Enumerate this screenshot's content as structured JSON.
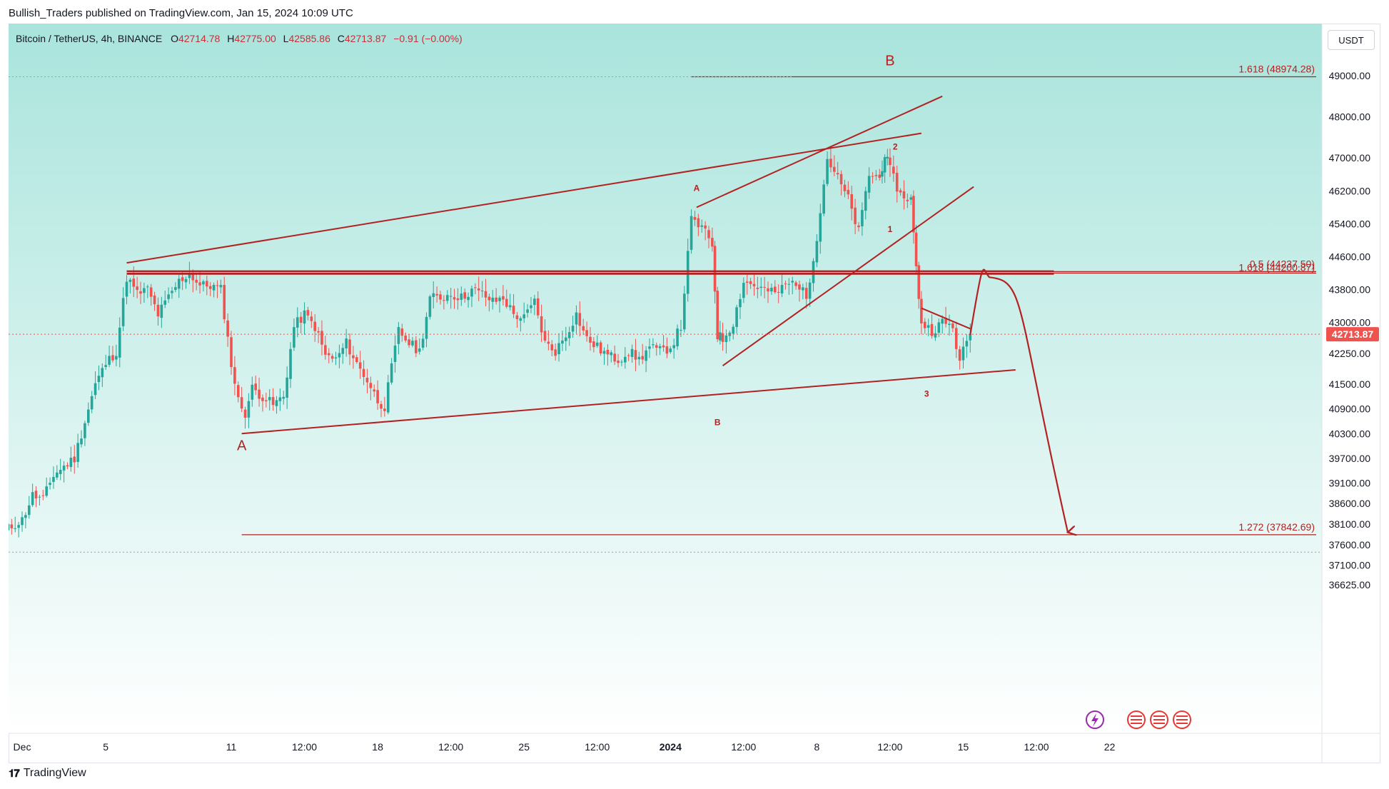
{
  "header": {
    "byline": "Bullish_Traders published on TradingView.com, Jan 15, 2024 10:09 UTC",
    "symbol": "Bitcoin / TetherUS, 4h, BINANCE",
    "ohlc": [
      {
        "k": "O",
        "v": "42714.78"
      },
      {
        "k": "H",
        "v": "42775.00"
      },
      {
        "k": "L",
        "v": "42585.86"
      },
      {
        "k": "C",
        "v": "42713.87"
      }
    ],
    "change": "−0.91 (−0.00%)",
    "currency": "USDT"
  },
  "footer": {
    "brand": "TradingView"
  },
  "colors": {
    "up": "#26a69a",
    "down": "#ef5350",
    "annotation": "#b22222",
    "bg_top": "#a9e4dc",
    "bg_bottom": "#ffffff"
  },
  "chart_data": {
    "type": "candlestick",
    "title": "Bitcoin / TetherUS, 4h, BINANCE",
    "ylim": [
      36400,
      49800
    ],
    "y_ticks": [
      "49000.00",
      "48000.00",
      "47000.00",
      "46200.00",
      "45400.00",
      "44600.00",
      "43800.00",
      "43000.00",
      "42250.00",
      "41500.00",
      "40900.00",
      "40300.00",
      "39700.00",
      "39100.00",
      "38600.00",
      "38100.00",
      "37600.00",
      "37100.00",
      "36625.00"
    ],
    "x_ticks": [
      {
        "label": "Dec",
        "x": "2023-12-01 00:00"
      },
      {
        "label": "5",
        "x": "2023-12-05 00:00"
      },
      {
        "label": "11",
        "x": "2023-12-11 00:00"
      },
      {
        "label": "12:00",
        "x": "2023-12-14 12:00"
      },
      {
        "label": "18",
        "x": "2023-12-18 00:00"
      },
      {
        "label": "12:00",
        "x": "2023-12-21 12:00"
      },
      {
        "label": "25",
        "x": "2023-12-25 00:00"
      },
      {
        "label": "12:00",
        "x": "2023-12-28 12:00"
      },
      {
        "label": "2024",
        "x": "2024-01-01 00:00"
      },
      {
        "label": "12:00",
        "x": "2024-01-04 12:00"
      },
      {
        "label": "8",
        "x": "2024-01-08 00:00"
      },
      {
        "label": "12:00",
        "x": "2024-01-11 12:00"
      },
      {
        "label": "15",
        "x": "2024-01-15 00:00"
      },
      {
        "label": "12:00",
        "x": "2024-01-18 12:00"
      },
      {
        "label": "22",
        "x": "2024-01-22 00:00"
      }
    ],
    "last_price": "42713.87",
    "close_path": [
      [
        "2023-11-30 00:00",
        37900
      ],
      [
        "2023-12-01 00:00",
        38200
      ],
      [
        "2023-12-01 12:00",
        38800
      ],
      [
        "2023-12-02 00:00",
        38700
      ],
      [
        "2023-12-02 12:00",
        39300
      ],
      [
        "2023-12-03 00:00",
        39500
      ],
      [
        "2023-12-03 12:00",
        39700
      ],
      [
        "2023-12-04 00:00",
        40600
      ],
      [
        "2023-12-04 12:00",
        41500
      ],
      [
        "2023-12-05 00:00",
        42000
      ],
      [
        "2023-12-05 12:00",
        42300
      ],
      [
        "2023-12-06 00:00",
        44100
      ],
      [
        "2023-12-06 12:00",
        43700
      ],
      [
        "2023-12-07 00:00",
        43800
      ],
      [
        "2023-12-07 12:00",
        43200
      ],
      [
        "2023-12-08 00:00",
        43600
      ],
      [
        "2023-12-08 12:00",
        44000
      ],
      [
        "2023-12-09 00:00",
        44200
      ],
      [
        "2023-12-09 12:00",
        43900
      ],
      [
        "2023-12-10 00:00",
        43900
      ],
      [
        "2023-12-10 12:00",
        43800
      ],
      [
        "2023-12-11 00:00",
        42000
      ],
      [
        "2023-12-11 08:00",
        41100
      ],
      [
        "2023-12-11 16:00",
        40800
      ],
      [
        "2023-12-12 00:00",
        41400
      ],
      [
        "2023-12-12 12:00",
        41200
      ],
      [
        "2023-12-13 00:00",
        41000
      ],
      [
        "2023-12-13 12:00",
        41200
      ],
      [
        "2023-12-14 00:00",
        42900
      ],
      [
        "2023-12-14 12:00",
        43200
      ],
      [
        "2023-12-15 00:00",
        42900
      ],
      [
        "2023-12-15 12:00",
        42200
      ],
      [
        "2023-12-16 00:00",
        42100
      ],
      [
        "2023-12-16 12:00",
        42500
      ],
      [
        "2023-12-17 00:00",
        42000
      ],
      [
        "2023-12-17 12:00",
        41600
      ],
      [
        "2023-12-18 00:00",
        41100
      ],
      [
        "2023-12-18 08:00",
        40950
      ],
      [
        "2023-12-18 16:00",
        41900
      ],
      [
        "2023-12-19 00:00",
        42800
      ],
      [
        "2023-12-19 12:00",
        42500
      ],
      [
        "2023-12-20 00:00",
        42300
      ],
      [
        "2023-12-20 12:00",
        43600
      ],
      [
        "2023-12-21 00:00",
        43600
      ],
      [
        "2023-12-21 12:00",
        43700
      ],
      [
        "2023-12-22 00:00",
        43600
      ],
      [
        "2023-12-22 12:00",
        43800
      ],
      [
        "2023-12-23 00:00",
        43700
      ],
      [
        "2023-12-23 12:00",
        43500
      ],
      [
        "2023-12-24 00:00",
        43600
      ],
      [
        "2023-12-24 12:00",
        43200
      ],
      [
        "2023-12-25 00:00",
        43100
      ],
      [
        "2023-12-25 12:00",
        43500
      ],
      [
        "2023-12-26 00:00",
        42500
      ],
      [
        "2023-12-26 12:00",
        42300
      ],
      [
        "2023-12-27 00:00",
        42700
      ],
      [
        "2023-12-27 12:00",
        43200
      ],
      [
        "2023-12-28 00:00",
        42600
      ],
      [
        "2023-12-28 12:00",
        42400
      ],
      [
        "2023-12-29 00:00",
        42200
      ],
      [
        "2023-12-29 12:00",
        42100
      ],
      [
        "2023-12-30 00:00",
        42300
      ],
      [
        "2023-12-30 12:00",
        42100
      ],
      [
        "2023-12-31 00:00",
        42400
      ],
      [
        "2023-12-31 12:00",
        42300
      ],
      [
        "2024-01-01 00:00",
        42400
      ],
      [
        "2024-01-01 12:00",
        42900
      ],
      [
        "2024-01-02 00:00",
        45500
      ],
      [
        "2024-01-02 12:00",
        45300
      ],
      [
        "2024-01-03 00:00",
        44900
      ],
      [
        "2024-01-03 06:00",
        42700
      ],
      [
        "2024-01-03 12:00",
        42600
      ],
      [
        "2024-01-04 00:00",
        43000
      ],
      [
        "2024-01-04 12:00",
        44000
      ],
      [
        "2024-01-05 00:00",
        43900
      ],
      [
        "2024-01-05 12:00",
        43800
      ],
      [
        "2024-01-06 00:00",
        43700
      ],
      [
        "2024-01-06 12:00",
        43900
      ],
      [
        "2024-01-07 00:00",
        44000
      ],
      [
        "2024-01-07 12:00",
        43600
      ],
      [
        "2024-01-08 00:00",
        45100
      ],
      [
        "2024-01-08 12:00",
        47000
      ],
      [
        "2024-01-09 00:00",
        46500
      ],
      [
        "2024-01-09 12:00",
        46000
      ],
      [
        "2024-01-10 00:00",
        45200
      ],
      [
        "2024-01-10 12:00",
        46600
      ],
      [
        "2024-01-11 00:00",
        46500
      ],
      [
        "2024-01-11 06:00",
        47100
      ],
      [
        "2024-01-11 12:00",
        46700
      ],
      [
        "2024-01-12 00:00",
        46100
      ],
      [
        "2024-01-12 12:00",
        46000
      ],
      [
        "2024-01-12 18:00",
        44300
      ],
      [
        "2024-01-13 00:00",
        43000
      ],
      [
        "2024-01-13 12:00",
        42800
      ],
      [
        "2024-01-14 00:00",
        43000
      ],
      [
        "2024-01-14 12:00",
        42900
      ],
      [
        "2024-01-14 20:00",
        42000
      ],
      [
        "2024-01-15 04:00",
        42600
      ],
      [
        "2024-01-15 08:00",
        42714
      ]
    ],
    "fib_levels": [
      {
        "label": "1.618 (48974.28)",
        "value": 48974.28
      },
      {
        "label": "0.5 (44237.50)",
        "value": 44237.5
      },
      {
        "label": "1.618 (44200.87)",
        "value": 44200.87
      },
      {
        "label": "1.272 (37842.69)",
        "value": 37842.69
      }
    ],
    "wave_labels": [
      {
        "text": "A",
        "x": "2023-12-11 12:00",
        "y": 39900,
        "size": "large"
      },
      {
        "text": "B",
        "x": "2024-01-11 12:00",
        "y": 49250,
        "size": "large"
      },
      {
        "text": "A",
        "x": "2024-01-02 06:00",
        "y": 46200,
        "size": "small"
      },
      {
        "text": "B",
        "x": "2024-01-03 06:00",
        "y": 40500,
        "size": "small"
      },
      {
        "text": "1",
        "x": "2024-01-11 12:00",
        "y": 45200,
        "size": "small"
      },
      {
        "text": "2",
        "x": "2024-01-11 18:00",
        "y": 47200,
        "size": "small"
      },
      {
        "text": "3",
        "x": "2024-01-13 06:00",
        "y": 41200,
        "size": "small"
      }
    ],
    "trend_lines": [
      {
        "from": [
          "2023-12-06 00:00",
          44450
        ],
        "to": [
          "2024-01-13 00:00",
          47600
        ]
      },
      {
        "from": [
          "2024-01-02 06:00",
          45800
        ],
        "to": [
          "2024-01-14 00:00",
          48500
        ]
      },
      {
        "from": [
          "2023-12-11 12:00",
          40300
        ],
        "to": [
          "2024-01-17 12:00",
          41850
        ]
      },
      {
        "from": [
          "2024-01-03 12:00",
          41950
        ],
        "to": [
          "2024-01-15 12:00",
          46300
        ]
      },
      {
        "from": [
          "2024-01-13 00:00",
          43350
        ],
        "to": [
          "2024-01-15 08:00",
          42850
        ]
      },
      {
        "from": [
          "2023-12-06 00:00",
          44250
        ],
        "to": [
          "2024-01-19 08:00",
          44250
        ]
      },
      {
        "from": [
          "2023-12-06 00:00",
          44180
        ],
        "to": [
          "2024-01-19 08:00",
          44180
        ]
      }
    ],
    "projection": [
      [
        "2024-01-15 08:00",
        42700
      ],
      [
        "2024-01-16 06:00",
        44100
      ],
      [
        "2024-01-17 12:00",
        42500
      ],
      [
        "2024-01-20 00:00",
        37900
      ]
    ]
  }
}
